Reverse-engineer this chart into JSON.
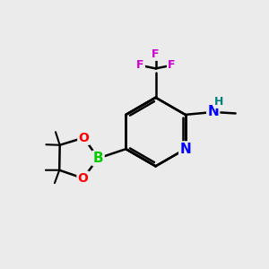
{
  "bg_color": "#ebebeb",
  "bond_color": "#000000",
  "bond_width": 1.8,
  "atom_colors": {
    "N": "#0000ff",
    "B": "#00cc00",
    "O": "#ff0000",
    "F": "#cc00cc",
    "H": "#008080",
    "C": "#000000"
  },
  "font_size_atom": 11,
  "font_size_small": 9,
  "figsize": [
    3.0,
    3.0
  ],
  "dpi": 100
}
